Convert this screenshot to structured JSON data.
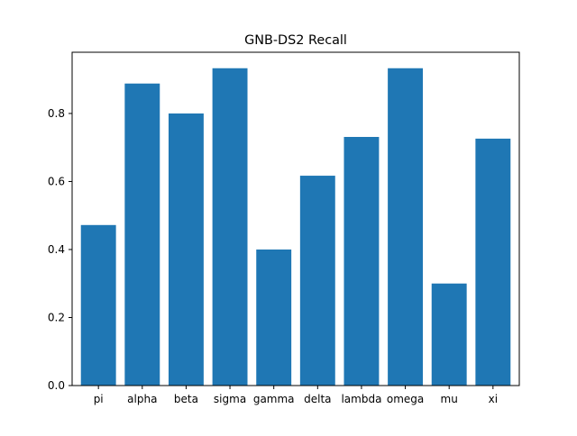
{
  "chart_data": {
    "type": "bar",
    "title": "GNB-DS2 Recall",
    "xlabel": "",
    "ylabel": "",
    "categories": [
      "pi",
      "alpha",
      "beta",
      "sigma",
      "gamma",
      "delta",
      "lambda",
      "omega",
      "mu",
      "xi"
    ],
    "values": [
      0.472,
      0.888,
      0.8,
      0.933,
      0.4,
      0.617,
      0.731,
      0.933,
      0.3,
      0.726
    ],
    "ylim": [
      0,
      0.98
    ],
    "yticks": [
      0.0,
      0.2,
      0.4,
      0.6,
      0.8
    ],
    "ytick_labels": [
      "0.0",
      "0.2",
      "0.4",
      "0.6",
      "0.8"
    ],
    "grid": false,
    "legend": "none",
    "colors": {
      "bar": "#1f77b4",
      "axes": "#000000",
      "background": "#ffffff"
    }
  }
}
